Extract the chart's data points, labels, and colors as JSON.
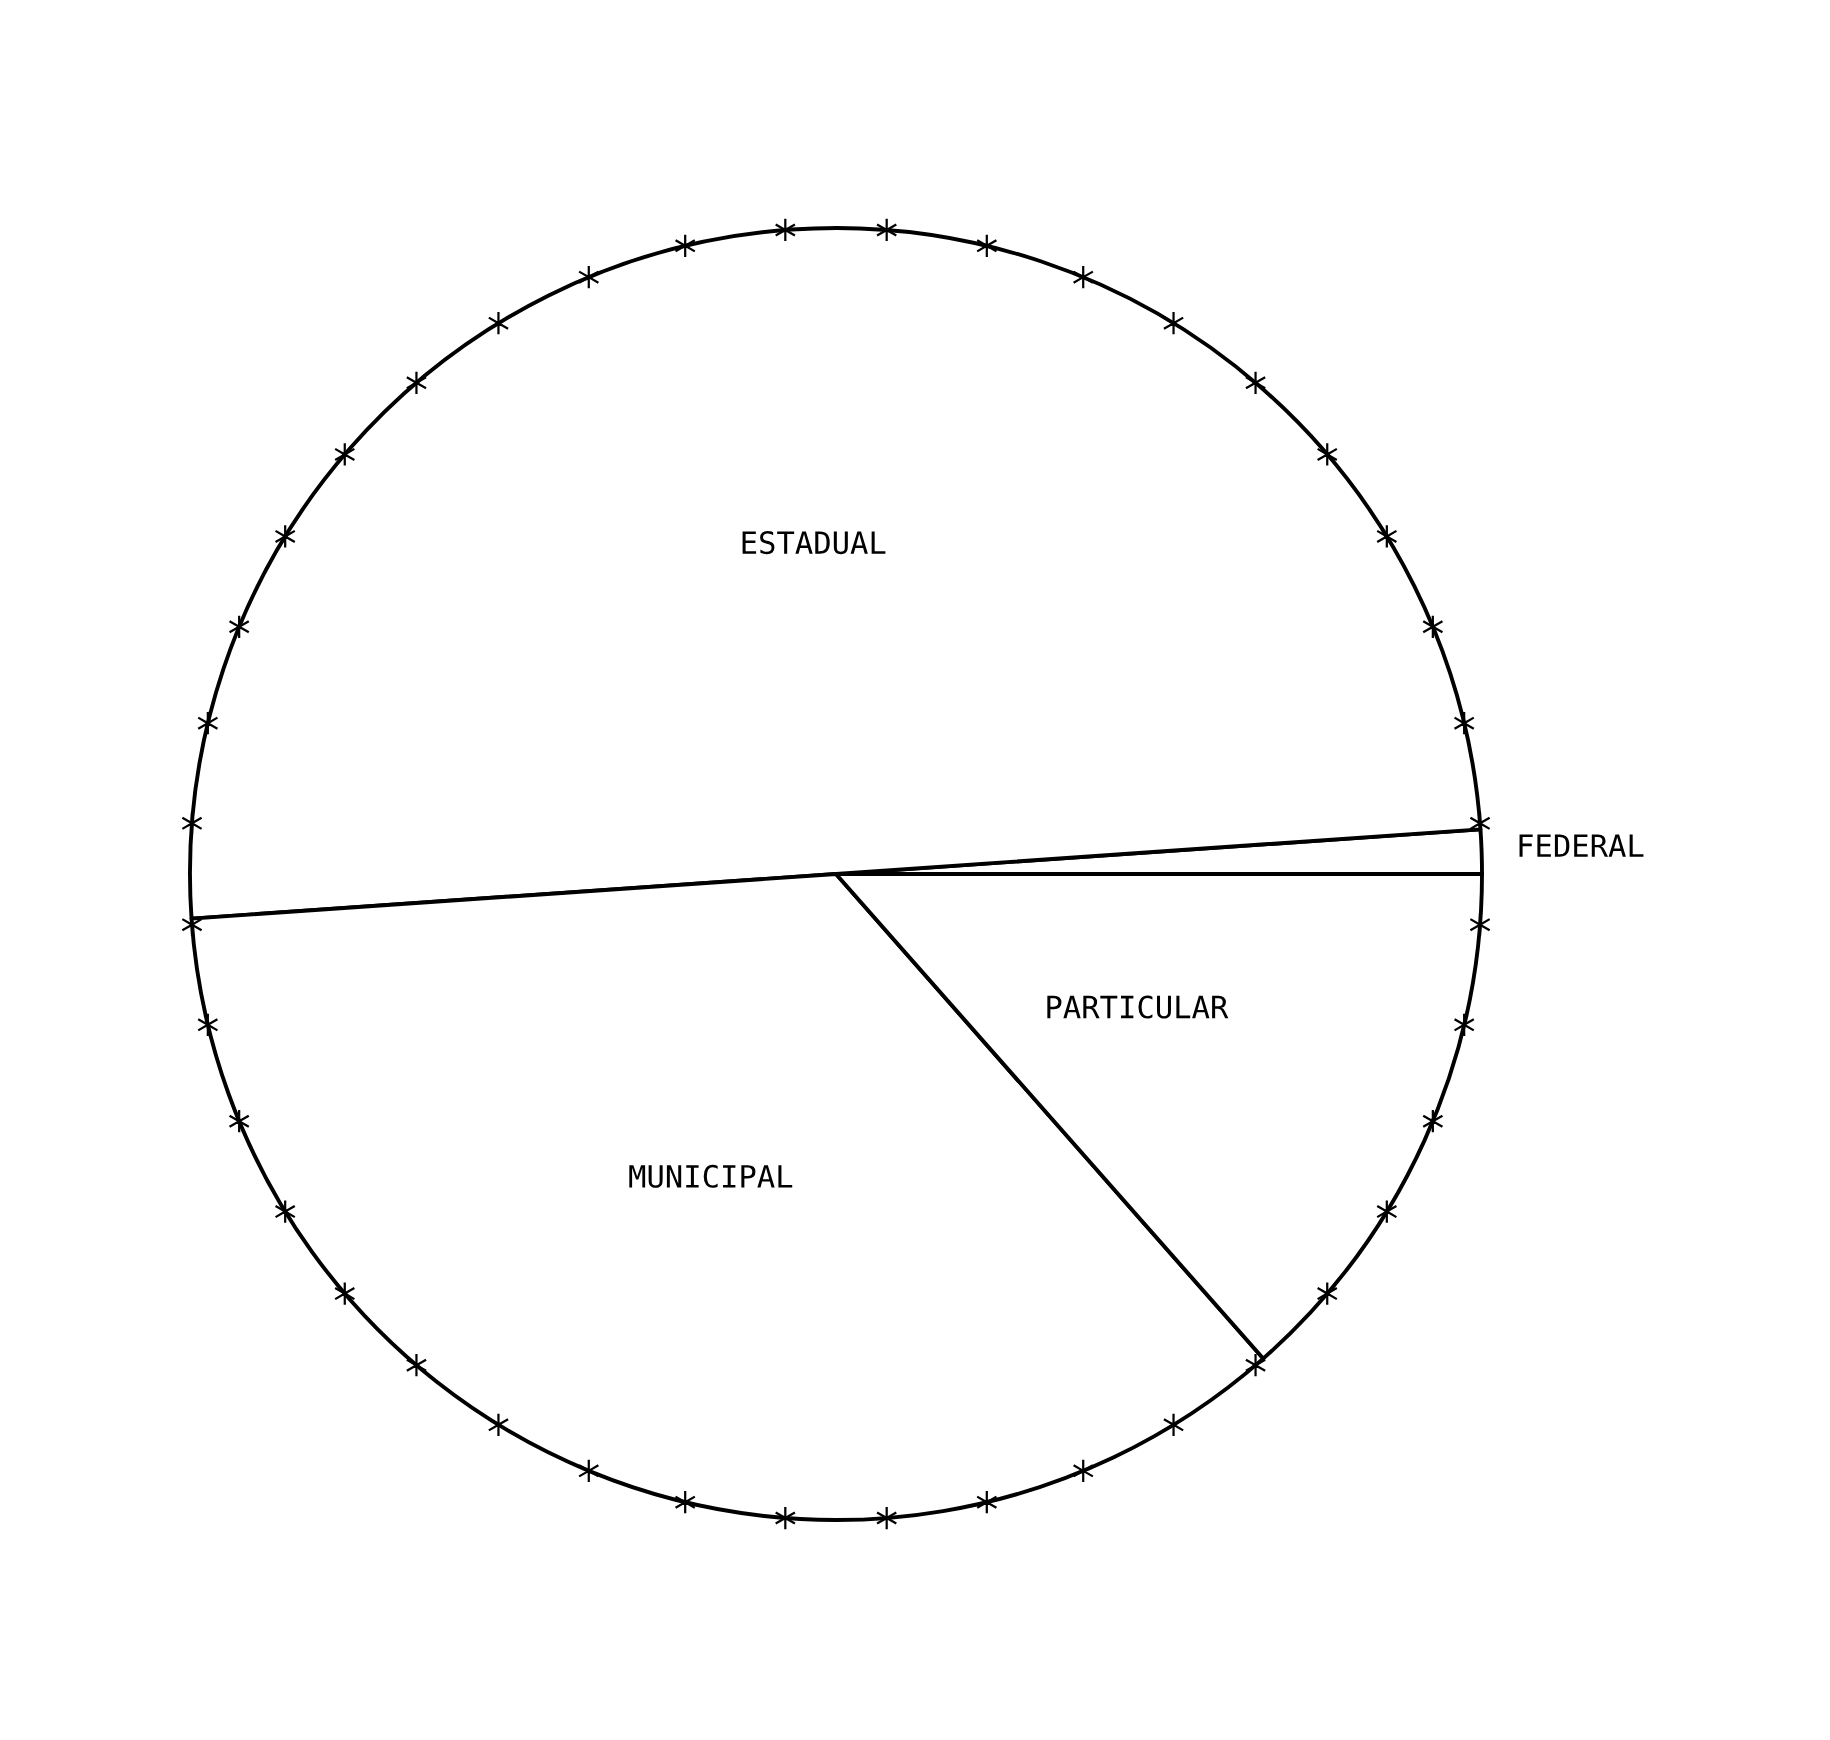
{
  "chart_data": {
    "type": "pie",
    "categories": [
      "FEDERAL",
      "ESTADUAL",
      "MUNICIPAL",
      "PARTICULAR"
    ],
    "values": [
      1.1,
      50.0,
      35.4,
      13.5
    ],
    "colors": [
      "#ffffff",
      "#ffffff",
      "#ffffff",
      "#ffffff"
    ]
  }
}
